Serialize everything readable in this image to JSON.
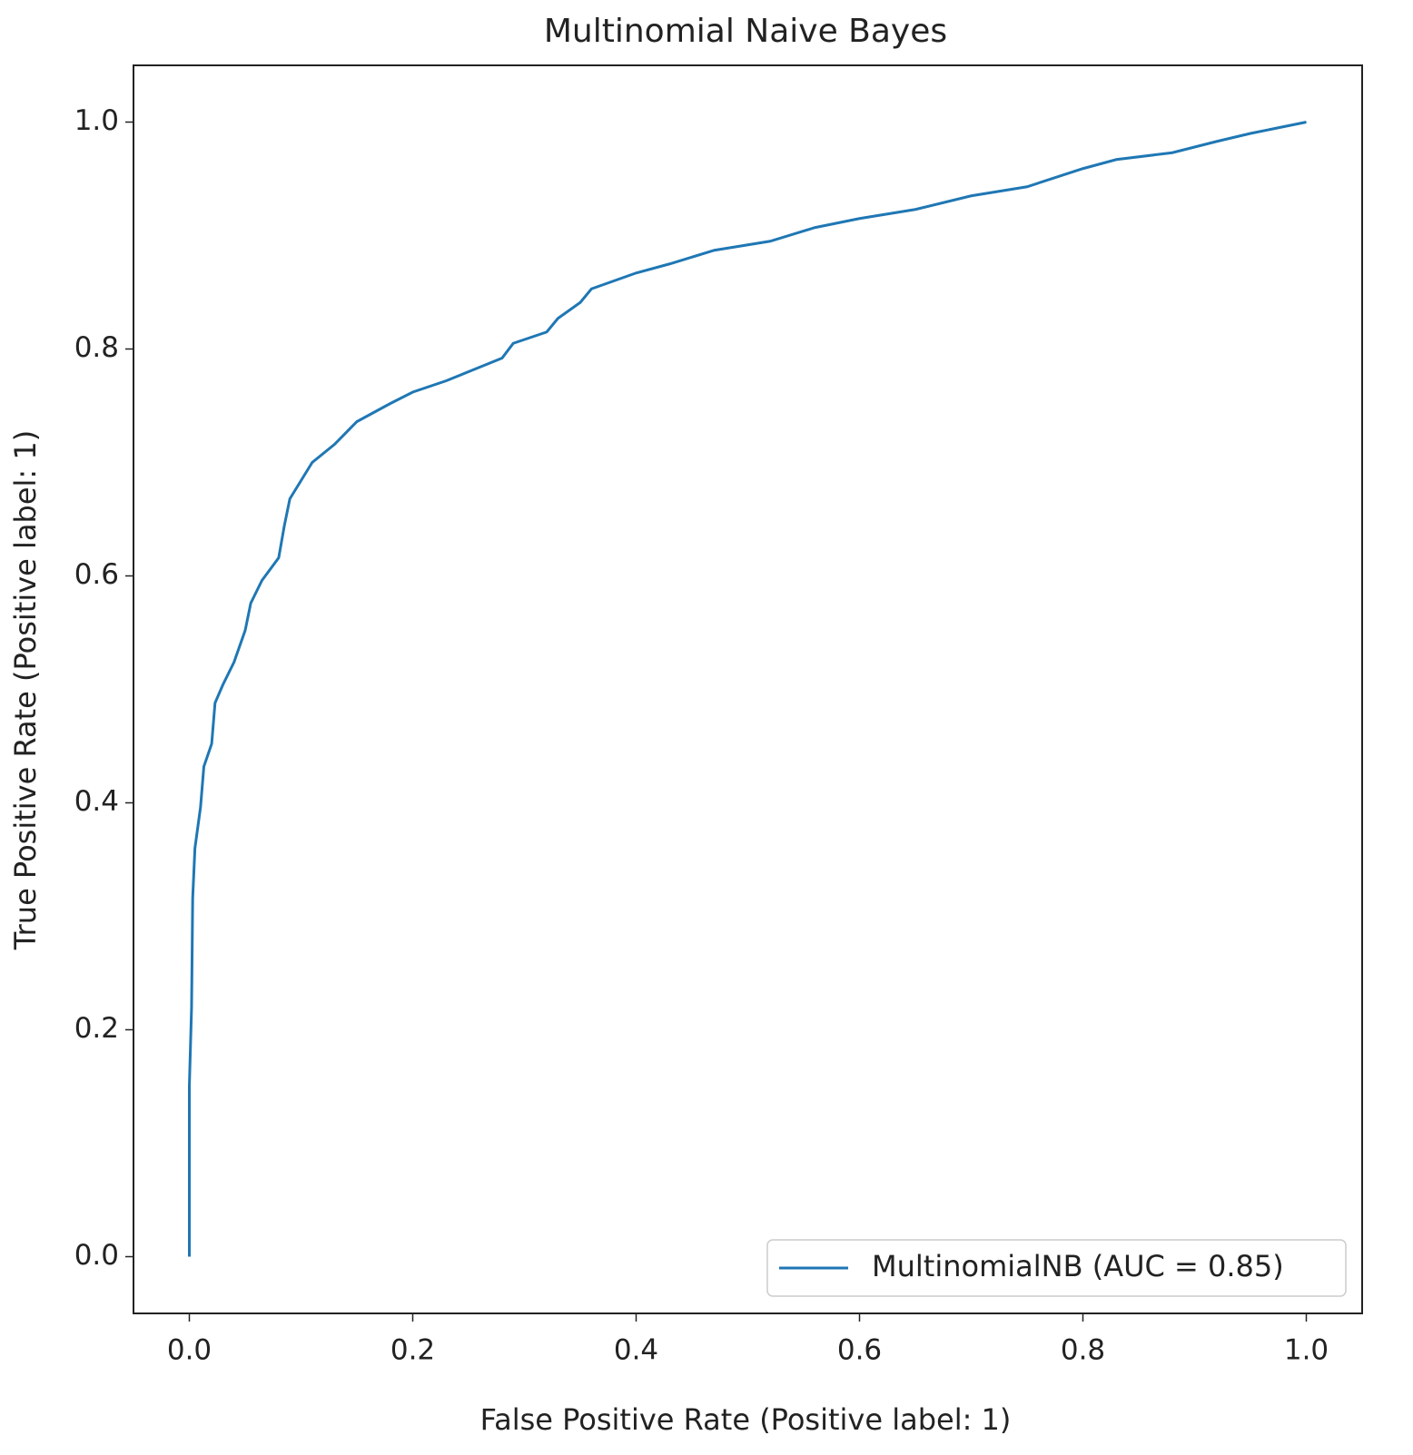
{
  "chart_data": {
    "type": "line",
    "title": "Multinomial Naive Bayes",
    "xlabel": "False Positive Rate (Positive label: 1)",
    "ylabel": "True Positive Rate (Positive label: 1)",
    "x": [
      0,
      0,
      0.002,
      0.003,
      0.005,
      0.01,
      0.013,
      0.02,
      0.023,
      0.03,
      0.04,
      0.05,
      0.055,
      0.065,
      0.08,
      0.085,
      0.09,
      0.1,
      0.11,
      0.13,
      0.15,
      0.18,
      0.2,
      0.23,
      0.26,
      0.28,
      0.29,
      0.32,
      0.33,
      0.35,
      0.36,
      0.4,
      0.43,
      0.47,
      0.52,
      0.56,
      0.6,
      0.65,
      0.7,
      0.75,
      0.8,
      0.83,
      0.88,
      0.92,
      0.95,
      1.0
    ],
    "series": [
      {
        "name": "MultinomialNB (AUC = 0.85)",
        "color": "#1f77b4",
        "values": [
          0,
          0.15,
          0.22,
          0.316,
          0.36,
          0.396,
          0.432,
          0.452,
          0.488,
          0.504,
          0.524,
          0.552,
          0.576,
          0.596,
          0.616,
          0.644,
          0.668,
          0.684,
          0.7,
          0.716,
          0.736,
          0.752,
          0.762,
          0.772,
          0.784,
          0.792,
          0.805,
          0.815,
          0.827,
          0.841,
          0.853,
          0.867,
          0.875,
          0.887,
          0.895,
          0.907,
          0.915,
          0.923,
          0.935,
          0.943,
          0.959,
          0.967,
          0.973,
          0.983,
          0.99,
          1.0
        ]
      }
    ],
    "xlim": [
      -0.05,
      1.05
    ],
    "ylim": [
      -0.05,
      1.05
    ],
    "xticks": [
      {
        "value": 0,
        "label": "0.0"
      },
      0.2,
      0.4,
      0.6,
      0.8,
      {
        "value": 1,
        "label": "1.0"
      }
    ],
    "yticks": [
      {
        "value": 0,
        "label": "0.0"
      },
      0.2,
      0.4,
      0.6,
      0.8,
      {
        "value": 1,
        "label": "1.0"
      }
    ],
    "legend": "lower right"
  }
}
